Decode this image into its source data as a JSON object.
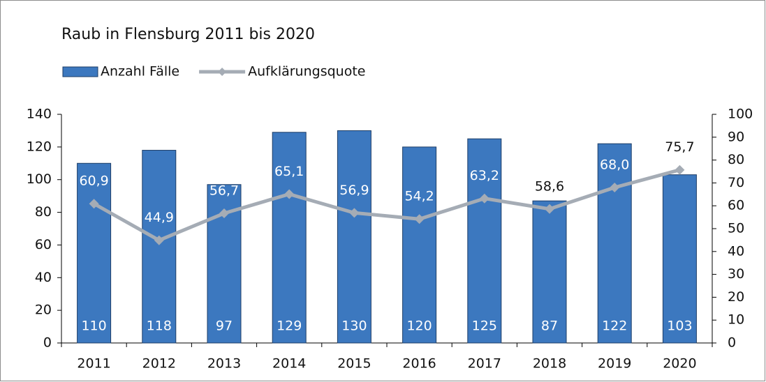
{
  "chart_data": {
    "type": "bar",
    "title": "Raub in Flensburg 2011 bis 2020",
    "categories": [
      "2011",
      "2012",
      "2013",
      "2014",
      "2015",
      "2016",
      "2017",
      "2018",
      "2019",
      "2020"
    ],
    "series": [
      {
        "name": "Anzahl Fälle",
        "type": "bar",
        "color": "#3c78bf",
        "values": [
          110,
          118,
          97,
          129,
          130,
          120,
          125,
          87,
          122,
          103
        ]
      },
      {
        "name": "Aufklärungsquote",
        "type": "line",
        "axis": "y2",
        "color": "#a5acb5",
        "values": [
          60.9,
          44.9,
          56.7,
          65.1,
          56.9,
          54.2,
          63.2,
          58.6,
          68.0,
          75.7
        ],
        "value_labels": [
          "60,9",
          "44,9",
          "56,7",
          "65,1",
          "56,9",
          "54,2",
          "63,2",
          "58,6",
          "68,0",
          "75,7"
        ]
      }
    ],
    "ylim": [
      0,
      140
    ],
    "yticks": [
      0,
      20,
      40,
      60,
      80,
      100,
      120,
      140
    ],
    "y2lim": [
      0,
      100
    ],
    "y2ticks": [
      0,
      10,
      20,
      30,
      40,
      50,
      60,
      70,
      80,
      90,
      100
    ]
  }
}
